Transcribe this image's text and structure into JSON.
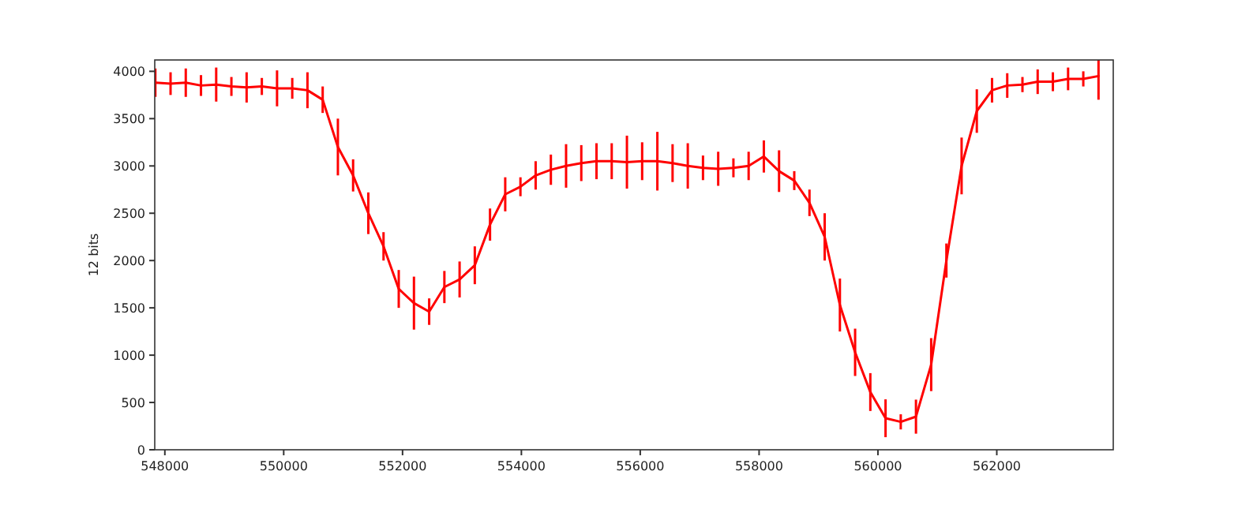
{
  "chart_data": {
    "type": "line",
    "ylabel": "12 bits",
    "xlim": [
      547830,
      563960
    ],
    "ylim": [
      0,
      4120
    ],
    "xticks": [
      548000,
      550000,
      552000,
      554000,
      556000,
      558000,
      560000,
      562000
    ],
    "yticks": [
      0,
      500,
      1000,
      1500,
      2000,
      2500,
      3000,
      3500,
      4000
    ],
    "grid": false,
    "marker": "none",
    "line_style": "solid",
    "x": [
      547840,
      548096,
      548352,
      548608,
      548864,
      549120,
      549376,
      549632,
      549888,
      550144,
      550400,
      550656,
      550912,
      551168,
      551424,
      551680,
      551936,
      552192,
      552448,
      552704,
      552960,
      553216,
      553472,
      553728,
      553984,
      554240,
      554496,
      554752,
      555008,
      555264,
      555520,
      555776,
      556032,
      556288,
      556544,
      556800,
      557056,
      557312,
      557568,
      557824,
      558080,
      558336,
      558592,
      558848,
      559104,
      559360,
      559616,
      559872,
      560128,
      560384,
      560640,
      560896,
      561152,
      561408,
      561664,
      561920,
      562176,
      562432,
      562688,
      562944,
      563200,
      563456,
      563712
    ],
    "series": [
      {
        "color": "#ff0000",
        "values": [
          3880,
          3870,
          3880,
          3850,
          3860,
          3840,
          3830,
          3840,
          3820,
          3820,
          3800,
          3700,
          3200,
          2900,
          2500,
          2150,
          1700,
          1550,
          1460,
          1720,
          1800,
          1950,
          2380,
          2700,
          2780,
          2900,
          2960,
          3000,
          3030,
          3050,
          3050,
          3040,
          3050,
          3050,
          3030,
          3000,
          2980,
          2970,
          2980,
          3000,
          3100,
          2945,
          2845,
          2610,
          2250,
          1530,
          1030,
          610,
          333,
          295,
          350,
          900,
          2000,
          3000,
          3580,
          3800,
          3850,
          3860,
          3890,
          3890,
          3920,
          3920,
          3950
        ],
        "errors": [
          150,
          120,
          150,
          110,
          180,
          100,
          160,
          90,
          190,
          110,
          190,
          140,
          300,
          170,
          220,
          150,
          200,
          280,
          140,
          170,
          190,
          200,
          170,
          180,
          100,
          150,
          160,
          230,
          190,
          190,
          190,
          280,
          200,
          310,
          200,
          240,
          130,
          180,
          100,
          150,
          170,
          220,
          100,
          140,
          250,
          280,
          250,
          200,
          200,
          80,
          180,
          280,
          180,
          300,
          230,
          130,
          130,
          80,
          130,
          100,
          120,
          80,
          250
        ]
      }
    ]
  }
}
